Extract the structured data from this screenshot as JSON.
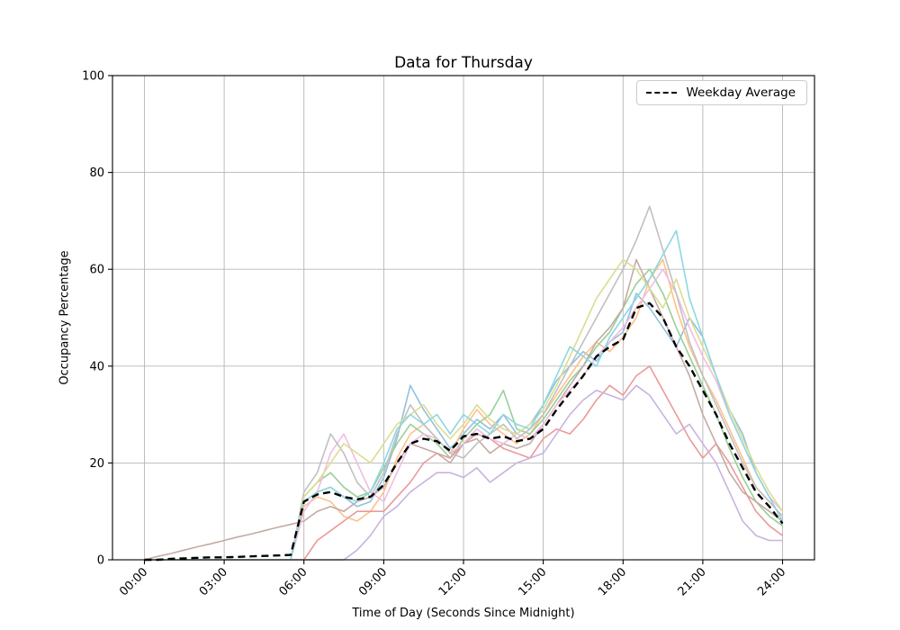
{
  "figure": {
    "title": "Data for Thursday",
    "xlabel": "Time of Day (Seconds Since Midnight)",
    "ylabel": "Occupancy Percentage",
    "legend": {
      "label": "Weekday Average"
    }
  },
  "chart_data": {
    "type": "line",
    "title": "Data for Thursday",
    "xlabel": "Time of Day (Seconds Since Midnight)",
    "ylabel": "Occupancy Percentage",
    "grid": true,
    "legend_position": "upper right",
    "xlim_hours": [
      -1.2,
      25.2
    ],
    "ylim": [
      0,
      100
    ],
    "x_tick_hours": [
      0,
      3,
      6,
      9,
      12,
      15,
      18,
      21,
      24
    ],
    "x_tick_labels": [
      "00:00",
      "03:00",
      "06:00",
      "09:00",
      "12:00",
      "15:00",
      "18:00",
      "21:00",
      "24:00"
    ],
    "y_ticks": [
      0,
      20,
      40,
      60,
      80,
      100
    ],
    "x_hours": [
      0,
      0.5,
      1,
      1.5,
      2,
      2.5,
      3,
      3.5,
      4,
      4.5,
      5,
      5.5,
      6,
      6.5,
      7,
      7.5,
      8,
      8.5,
      9,
      9.5,
      10,
      10.5,
      11,
      11.5,
      12,
      12.5,
      13,
      13.5,
      14,
      14.5,
      15,
      15.5,
      16,
      16.5,
      17,
      17.5,
      18,
      18.5,
      19,
      19.5,
      20,
      20.5,
      21,
      21.5,
      22,
      22.5,
      23,
      23.5,
      24
    ],
    "average_series": {
      "name": "Weekday Average",
      "color": "#000000",
      "style": "dashed",
      "values": [
        0,
        0,
        0.2,
        0.3,
        0.4,
        0.5,
        0.5,
        0.6,
        0.7,
        0.8,
        0.9,
        1,
        12,
        13.5,
        14,
        13,
        12.5,
        13,
        15.5,
        20,
        24,
        25,
        24.5,
        22.5,
        25.5,
        26,
        25,
        25.5,
        24.5,
        25,
        27,
        31,
        34.5,
        38,
        42,
        44,
        45.5,
        52,
        53,
        50,
        44,
        40,
        35,
        30,
        24,
        19,
        14,
        11,
        7.5
      ]
    },
    "series": [
      {
        "color": "#92c0dd",
        "values": [
          0,
          0,
          0,
          0,
          0,
          0,
          0,
          0,
          0,
          0,
          0,
          0,
          12,
          14,
          15,
          13,
          11,
          12,
          17,
          25,
          36,
          31,
          27,
          23,
          26,
          29,
          27,
          30,
          26,
          28,
          32,
          37,
          40,
          43,
          41,
          45,
          47,
          55,
          52,
          48,
          44,
          50,
          46,
          38,
          31,
          26,
          18,
          13,
          8
        ]
      },
      {
        "color": "#ffc08a",
        "values": [
          0,
          0,
          0,
          0,
          0,
          0,
          0,
          0,
          0,
          0,
          0,
          0,
          11,
          13,
          12,
          9,
          8,
          10,
          14,
          21,
          26,
          28,
          25,
          22,
          27,
          31,
          28,
          26,
          24,
          26,
          30,
          34,
          38,
          42,
          45,
          43,
          46,
          50,
          58,
          62,
          52,
          44,
          38,
          33,
          27,
          21,
          15,
          12,
          9
        ]
      },
      {
        "color": "#97d097",
        "values": [
          0,
          0,
          0,
          0,
          0,
          0,
          0,
          0,
          0,
          0,
          0,
          0,
          13,
          16,
          18,
          15,
          13,
          14,
          19,
          24,
          28,
          26,
          24,
          21,
          25,
          28,
          30,
          35,
          27,
          26,
          29,
          33,
          37,
          40,
          44,
          47,
          52,
          57,
          60,
          55,
          48,
          42,
          36,
          30,
          23,
          17,
          12,
          9,
          7
        ]
      },
      {
        "color": "#eb9a9b",
        "values": [
          0,
          0,
          0,
          0,
          0,
          0,
          0,
          0,
          0,
          0,
          0,
          0,
          0,
          4,
          6,
          8,
          10,
          10,
          10,
          13,
          16,
          20,
          22,
          21,
          24,
          26,
          25,
          23,
          22,
          21,
          25,
          27,
          26,
          29,
          33,
          36,
          34,
          38,
          40,
          35,
          30,
          25,
          21,
          24,
          20,
          15,
          10,
          7,
          5
        ]
      },
      {
        "color": "#c9b3de",
        "values": [
          0,
          0,
          0,
          0,
          0,
          0,
          0,
          0,
          0,
          0,
          0,
          0,
          0,
          0,
          0,
          0,
          2,
          5,
          9,
          11,
          14,
          16,
          18,
          18,
          17,
          19,
          16,
          18,
          20,
          21,
          22,
          26,
          30,
          33,
          35,
          34,
          33,
          36,
          34,
          30,
          26,
          28,
          24,
          20,
          14,
          8,
          5,
          4,
          4
        ]
      },
      {
        "color": "#c5aaa5",
        "values": [
          0,
          0.7,
          1.3,
          2,
          2.7,
          3.3,
          4,
          4.7,
          5.3,
          6,
          6.7,
          7.3,
          8,
          10,
          11,
          10,
          12,
          13,
          15,
          20,
          24,
          23,
          22,
          20,
          24,
          25,
          22,
          24,
          23,
          24,
          28,
          32,
          36,
          40,
          45,
          48,
          52,
          62,
          56,
          50,
          44,
          38,
          30,
          24,
          18,
          14,
          12,
          10,
          8
        ]
      },
      {
        "color": "#f2bce1",
        "values": [
          0,
          0,
          0,
          0,
          0,
          0,
          0,
          0,
          0,
          0,
          0,
          0,
          10,
          14,
          22,
          26,
          20,
          14,
          12,
          18,
          24,
          26,
          25,
          22,
          24,
          27,
          25,
          24,
          26,
          25,
          28,
          32,
          35,
          38,
          42,
          45,
          48,
          52,
          56,
          60,
          55,
          48,
          42,
          37,
          30,
          24,
          18,
          13,
          10
        ]
      },
      {
        "color": "#c0c0c0",
        "values": [
          0,
          0,
          0,
          0,
          0,
          0,
          0,
          0,
          0,
          0,
          0,
          0,
          14,
          18,
          26,
          22,
          16,
          13,
          18,
          26,
          32,
          28,
          25,
          22,
          21,
          24,
          26,
          28,
          25,
          27,
          30,
          35,
          40,
          45,
          50,
          55,
          60,
          66,
          73,
          64,
          55,
          45,
          38,
          32,
          26,
          20,
          15,
          12,
          9
        ]
      },
      {
        "color": "#dcdd90",
        "values": [
          0,
          0,
          0,
          0,
          0,
          0,
          0,
          0,
          0,
          0,
          0,
          0,
          13,
          16,
          20,
          24,
          22,
          20,
          24,
          28,
          30,
          32,
          28,
          25,
          28,
          32,
          29,
          27,
          26,
          28,
          31,
          36,
          42,
          48,
          54,
          58,
          62,
          60,
          56,
          52,
          58,
          50,
          44,
          38,
          31,
          25,
          19,
          14,
          10
        ]
      },
      {
        "color": "#8cd7e2",
        "values": [
          0,
          0,
          0,
          0,
          0,
          0,
          0,
          0,
          0,
          0,
          0,
          0,
          12,
          14,
          15,
          13,
          12,
          14,
          20,
          27,
          30,
          28,
          30,
          26,
          30,
          28,
          26,
          30,
          28,
          27,
          32,
          38,
          44,
          42,
          40,
          46,
          50,
          54,
          58,
          63,
          68,
          54,
          46,
          38,
          30,
          24,
          18,
          13,
          8
        ]
      }
    ]
  }
}
